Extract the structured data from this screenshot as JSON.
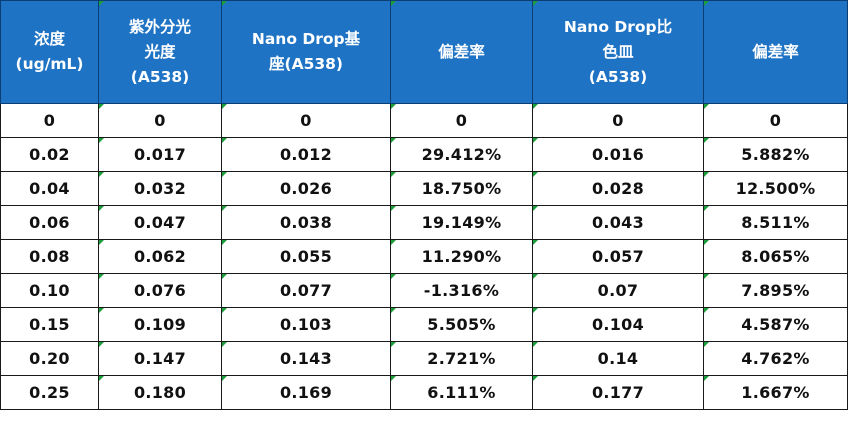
{
  "table": {
    "headers": [
      [
        "浓度",
        "(ug/mL)"
      ],
      [
        "紫外分光",
        "光度",
        "(A538)"
      ],
      [
        "Nano Drop基",
        "座(A538)"
      ],
      [
        "偏差率"
      ],
      [
        "Nano Drop比",
        "色皿",
        "(A538)"
      ],
      [
        "偏差率"
      ]
    ],
    "rows": [
      [
        "0",
        "0",
        "0",
        "0",
        "0",
        "0"
      ],
      [
        "0.02",
        "0.017",
        "0.012",
        "29.412%",
        "0.016",
        "5.882%"
      ],
      [
        "0.04",
        "0.032",
        "0.026",
        "18.750%",
        "0.028",
        "12.500%"
      ],
      [
        "0.06",
        "0.047",
        "0.038",
        "19.149%",
        "0.043",
        "8.511%"
      ],
      [
        "0.08",
        "0.062",
        "0.055",
        "11.290%",
        "0.057",
        "8.065%"
      ],
      [
        "0.10",
        "0.076",
        "0.077",
        "-1.316%",
        "0.07",
        "7.895%"
      ],
      [
        "0.15",
        "0.109",
        "0.103",
        "5.505%",
        "0.104",
        "4.587%"
      ],
      [
        "0.20",
        "0.147",
        "0.143",
        "2.721%",
        "0.14",
        "4.762%"
      ],
      [
        "0.25",
        "0.180",
        "0.169",
        "6.111%",
        "0.177",
        "1.667%"
      ]
    ]
  },
  "colors": {
    "header_bg": "#1f73c4",
    "header_text": "#ffffff",
    "cell_marker": "#1e9e3a"
  }
}
